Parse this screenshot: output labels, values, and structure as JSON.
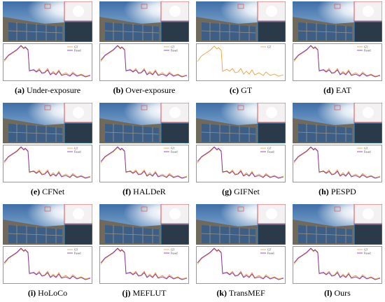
{
  "panels": [
    {
      "tag": "(a)",
      "name": "Under-exposure",
      "legend": [
        "GT",
        "Fused"
      ]
    },
    {
      "tag": "(b)",
      "name": "Over-exposure",
      "legend": [
        "GT",
        "Fused"
      ]
    },
    {
      "tag": "(c)",
      "name": "GT",
      "legend": [
        "GT"
      ]
    },
    {
      "tag": "(d)",
      "name": "EAT",
      "legend": [
        "GT",
        "Fused"
      ]
    },
    {
      "tag": "(e)",
      "name": "CFNet",
      "legend": [
        "GT",
        "Fused"
      ]
    },
    {
      "tag": "(f)",
      "name": "HALDeR",
      "legend": [
        "GT",
        "Fused"
      ]
    },
    {
      "tag": "(g)",
      "name": "GIFNet",
      "legend": [
        "GT",
        "Fused"
      ]
    },
    {
      "tag": "(h)",
      "name": "PESPD",
      "legend": [
        "GT",
        "Fused"
      ]
    },
    {
      "tag": "(i)",
      "name": "HoLoCo",
      "legend": [
        "GT",
        "Fused"
      ]
    },
    {
      "tag": "(j)",
      "name": "MEFLUT",
      "legend": [
        "GT",
        "Fused"
      ]
    },
    {
      "tag": "(k)",
      "name": "TransMEF",
      "legend": [
        "GT",
        "Fused"
      ]
    },
    {
      "tag": "(l)",
      "name": "Ours",
      "legend": [
        "GT",
        "Fused"
      ]
    }
  ]
}
